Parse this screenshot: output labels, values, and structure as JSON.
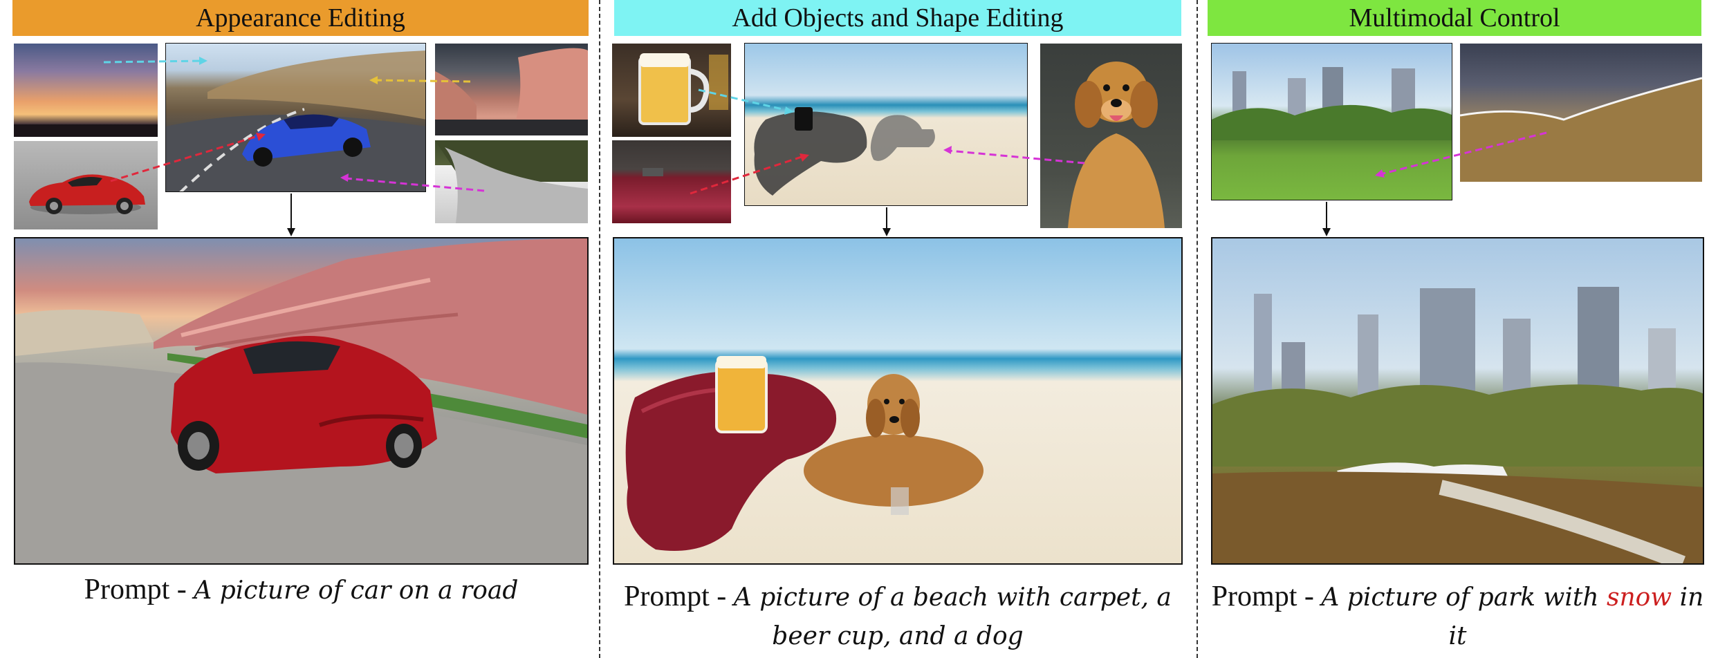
{
  "colors": {
    "panel1_header": "#ea9b2c",
    "panel2_header": "#7ef3f3",
    "panel3_header": "#7ee640",
    "arrow_cyan": "#5fd4e6",
    "arrow_yellow": "#e5c13a",
    "arrow_magenta": "#d633d6",
    "arrow_red": "#e0283c",
    "highlight_word": "#cc1f1f"
  },
  "panels": [
    {
      "title": "Appearance Editing",
      "prompt_lead": "Prompt - ",
      "prompt_text": "A picture of car on a road"
    },
    {
      "title": "Add Objects and Shape Editing",
      "prompt_lead": "Prompt - ",
      "prompt_text": "A picture of a beach with carpet, a beer cup, and a dog"
    },
    {
      "title": "Multimodal Control",
      "prompt_lead": "Prompt - ",
      "prompt_pre": "A picture of park with ",
      "prompt_highlight": "snow",
      "prompt_post": " in it"
    }
  ]
}
